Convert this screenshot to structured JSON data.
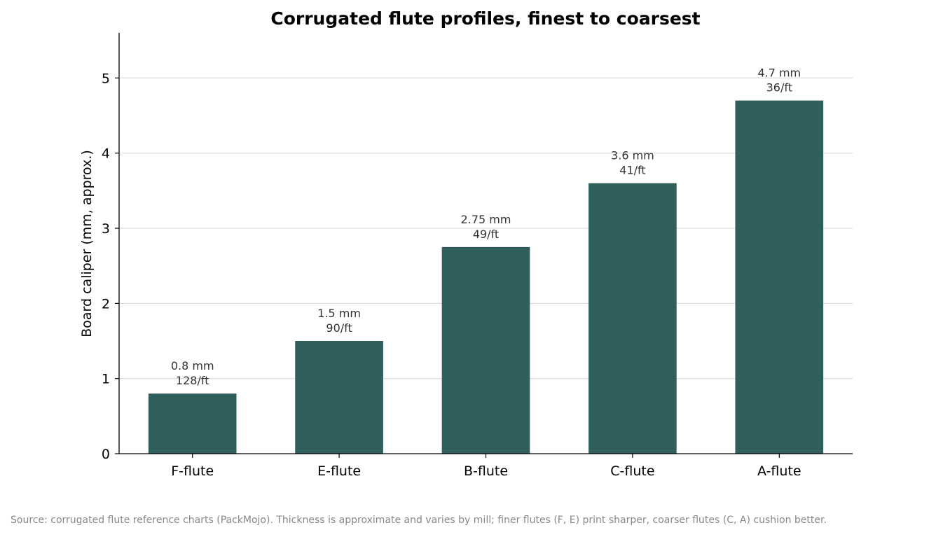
{
  "chart_data": {
    "type": "bar",
    "title": "Corrugated flute profiles, finest to coarsest",
    "xlabel": "",
    "ylabel": "Board caliper (mm, approx.)",
    "categories": [
      "F-flute",
      "E-flute",
      "B-flute",
      "C-flute",
      "A-flute"
    ],
    "values": [
      0.8,
      1.5,
      2.75,
      3.6,
      4.7
    ],
    "bar_labels": [
      [
        "0.8 mm",
        "128/ft"
      ],
      [
        "1.5 mm",
        "90/ft"
      ],
      [
        "2.75 mm",
        "49/ft"
      ],
      [
        "3.6 mm",
        "41/ft"
      ],
      [
        "4.7 mm",
        "36/ft"
      ]
    ],
    "ylim": [
      0,
      5.6
    ],
    "yticks": [
      0,
      1,
      2,
      3,
      4,
      5
    ],
    "grid": "horizontal",
    "legend": "none",
    "colors": {
      "bar": "#2e5f5c",
      "grid": "#dddddd",
      "axis": "#000000",
      "data_label": "#333333"
    }
  },
  "footer": {
    "source": "Source: corrugated flute reference charts (PackMojo). Thickness is approximate and varies by mill; finer flutes (F, E) print sharper, coarser flutes (C, A) cushion better."
  }
}
